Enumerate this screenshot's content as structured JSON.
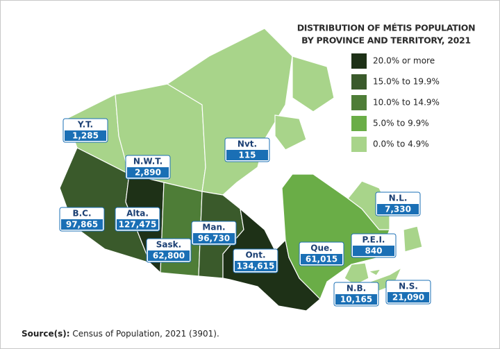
{
  "title": [
    "DISTRIBUTION OF MÉTIS POPULATION",
    "BY PROVINCE AND TERRITORY, 2021"
  ],
  "legend": [
    {
      "label": "20.0% or more",
      "color": "#1e3117"
    },
    {
      "label": "15.0% to 19.9%",
      "color": "#3a5a2b"
    },
    {
      "label": "10.0% to 14.9%",
      "color": "#4e7d37"
    },
    {
      "label": "5.0% to 9.9%",
      "color": "#6aad47"
    },
    {
      "label": "0.0% to 4.9%",
      "color": "#a8d48a"
    }
  ],
  "regions": [
    {
      "abbr": "Y.T.",
      "population": "1,285",
      "color": "#a8d48a"
    },
    {
      "abbr": "N.W.T.",
      "population": "2,890",
      "color": "#a8d48a"
    },
    {
      "abbr": "Nvt.",
      "population": "115",
      "color": "#a8d48a"
    },
    {
      "abbr": "B.C.",
      "population": "97,865",
      "color": "#3a5a2b"
    },
    {
      "abbr": "Alta.",
      "population": "127,475",
      "color": "#1e3117"
    },
    {
      "abbr": "Sask.",
      "population": "62,800",
      "color": "#4e7d37"
    },
    {
      "abbr": "Man.",
      "population": "96,730",
      "color": "#3a5a2b"
    },
    {
      "abbr": "Ont.",
      "population": "134,615",
      "color": "#1e3117"
    },
    {
      "abbr": "Que.",
      "population": "61,015",
      "color": "#6aad47"
    },
    {
      "abbr": "N.L.",
      "population": "7,330",
      "color": "#a8d48a"
    },
    {
      "abbr": "N.B.",
      "population": "10,165",
      "color": "#a8d48a"
    },
    {
      "abbr": "P.E.I.",
      "population": "840",
      "color": "#a8d48a"
    },
    {
      "abbr": "N.S.",
      "population": "21,090",
      "color": "#a8d48a"
    }
  ],
  "source": {
    "label": "Source(s):",
    "text": "Census of Population, 2021 (3901)."
  }
}
